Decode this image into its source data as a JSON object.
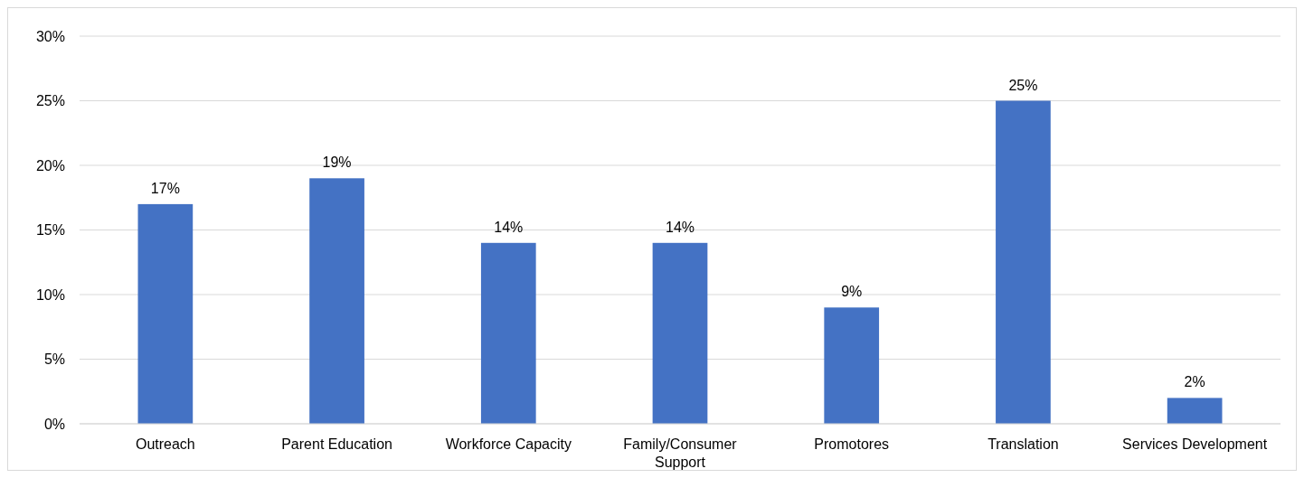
{
  "chart_data": {
    "type": "bar",
    "categories": [
      "Outreach",
      "Parent Education",
      "Workforce Capacity",
      "Family/Consumer Support",
      "Promotores",
      "Translation",
      "Services Development"
    ],
    "values": [
      17,
      19,
      14,
      14,
      9,
      25,
      2
    ],
    "value_labels": [
      "17%",
      "19%",
      "14%",
      "14%",
      "9%",
      "25%",
      "2%"
    ],
    "color": "#4472c4",
    "ylim": [
      0,
      30
    ],
    "yticks": [
      {
        "value": 0,
        "label": "0%"
      },
      {
        "value": 5,
        "label": "5%"
      },
      {
        "value": 10,
        "label": "10%"
      },
      {
        "value": 15,
        "label": "15%"
      },
      {
        "value": 20,
        "label": "20%"
      },
      {
        "value": 25,
        "label": "25%"
      },
      {
        "value": 30,
        "label": "30%"
      }
    ],
    "grid": "y"
  }
}
